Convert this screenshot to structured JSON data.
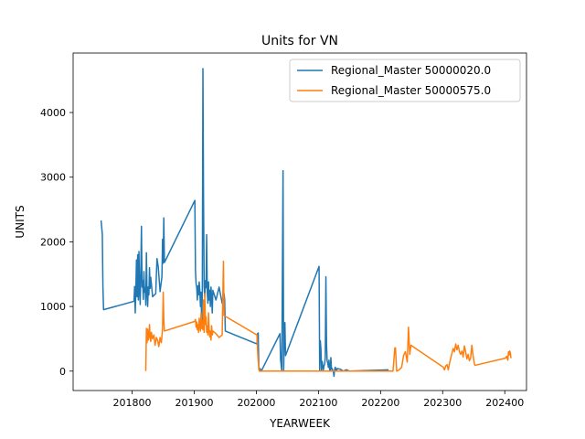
{
  "chart_data": {
    "type": "line",
    "title": "Units for VN",
    "xlabel": "YEARWEEK",
    "ylabel": "UNITS",
    "xlim": [
      201705,
      202435
    ],
    "ylim": [
      -300,
      4920
    ],
    "xticks": [
      201800,
      201900,
      202000,
      202100,
      202200,
      202300,
      202400
    ],
    "yticks": [
      0,
      1000,
      2000,
      3000,
      4000
    ],
    "grid": false,
    "legend_position": "top-right",
    "series": [
      {
        "name": "Regional_Master 50000020.0",
        "color": "#1f77b4",
        "points": [
          [
            201750,
            2330
          ],
          [
            201752,
            2120
          ],
          [
            201753,
            1300
          ],
          [
            201754,
            950
          ],
          [
            201803,
            1080
          ],
          [
            201804,
            1310
          ],
          [
            201805,
            900
          ],
          [
            201806,
            1270
          ],
          [
            201807,
            1720
          ],
          [
            201808,
            1150
          ],
          [
            201809,
            1800
          ],
          [
            201810,
            1100
          ],
          [
            201811,
            1850
          ],
          [
            201812,
            1250
          ],
          [
            201813,
            1030
          ],
          [
            201814,
            1560
          ],
          [
            201815,
            2240
          ],
          [
            201816,
            1300
          ],
          [
            201817,
            1400
          ],
          [
            201818,
            1110
          ],
          [
            201819,
            1540
          ],
          [
            201820,
            1220
          ],
          [
            201821,
            1290
          ],
          [
            201822,
            1020
          ],
          [
            201823,
            1830
          ],
          [
            201824,
            1250
          ],
          [
            201825,
            1000
          ],
          [
            201826,
            1300
          ],
          [
            201827,
            1180
          ],
          [
            201828,
            1600
          ],
          [
            201829,
            1280
          ],
          [
            201830,
            1450
          ],
          [
            201833,
            1150
          ],
          [
            201838,
            1200
          ],
          [
            201840,
            1740
          ],
          [
            201842,
            1620
          ],
          [
            201845,
            1230
          ],
          [
            201848,
            1460
          ],
          [
            201849,
            2040
          ],
          [
            201850,
            1670
          ],
          [
            201851,
            2370
          ],
          [
            201852,
            1680
          ],
          [
            201901,
            2640
          ],
          [
            201902,
            1560
          ],
          [
            201903,
            1350
          ],
          [
            201904,
            1300
          ],
          [
            201905,
            1100
          ],
          [
            201906,
            1320
          ],
          [
            201907,
            1180
          ],
          [
            201908,
            1380
          ],
          [
            201909,
            1250
          ],
          [
            201910,
            1000
          ],
          [
            201911,
            1220
          ],
          [
            201912,
            720
          ],
          [
            201913,
            1200
          ],
          [
            201914,
            4680
          ],
          [
            201915,
            2660
          ],
          [
            201916,
            1300
          ],
          [
            201917,
            1150
          ],
          [
            201918,
            1400
          ],
          [
            201919,
            1290
          ],
          [
            201920,
            2110
          ],
          [
            201921,
            1200
          ],
          [
            201922,
            1050
          ],
          [
            201923,
            1380
          ],
          [
            201924,
            1100
          ],
          [
            201925,
            1250
          ],
          [
            201926,
            1000
          ],
          [
            201927,
            1300
          ],
          [
            201928,
            1150
          ],
          [
            201929,
            900
          ],
          [
            201930,
            1250
          ],
          [
            201935,
            1100
          ],
          [
            201940,
            1300
          ],
          [
            201945,
            1050
          ],
          [
            201947,
            1080
          ],
          [
            201948,
            1200
          ],
          [
            201949,
            1100
          ],
          [
            201950,
            620
          ],
          [
            202001,
            420
          ],
          [
            202002,
            580
          ],
          [
            202003,
            590
          ],
          [
            202004,
            40
          ],
          [
            202005,
            0
          ],
          [
            202006,
            40
          ],
          [
            202008,
            0
          ],
          [
            202038,
            580
          ],
          [
            202039,
            180
          ],
          [
            202041,
            0
          ],
          [
            202043,
            3100
          ],
          [
            202044,
            0
          ],
          [
            202045,
            580
          ],
          [
            202046,
            750
          ],
          [
            202047,
            240
          ],
          [
            202101,
            1620
          ],
          [
            202102,
            0
          ],
          [
            202103,
            470
          ],
          [
            202104,
            340
          ],
          [
            202105,
            0
          ],
          [
            202106,
            150
          ],
          [
            202107,
            80
          ],
          [
            202108,
            20
          ],
          [
            202109,
            80
          ],
          [
            202110,
            110
          ],
          [
            202111,
            210
          ],
          [
            202112,
            1460
          ],
          [
            202113,
            420
          ],
          [
            202114,
            160
          ],
          [
            202115,
            120
          ],
          [
            202116,
            60
          ],
          [
            202117,
            170
          ],
          [
            202118,
            20
          ],
          [
            202119,
            0
          ],
          [
            202120,
            210
          ],
          [
            202121,
            30
          ],
          [
            202122,
            40
          ],
          [
            202123,
            10
          ],
          [
            202124,
            0
          ],
          [
            202125,
            -80
          ],
          [
            202126,
            20
          ],
          [
            202127,
            60
          ],
          [
            202128,
            30
          ],
          [
            202129,
            0
          ],
          [
            202130,
            40
          ],
          [
            202135,
            30
          ],
          [
            202140,
            0
          ],
          [
            202145,
            20
          ],
          [
            202150,
            0
          ],
          [
            202213,
            20
          ]
        ]
      },
      {
        "name": "Regional_Master 50000575.0",
        "color": "#ff7f0e",
        "points": [
          [
            201822,
            0
          ],
          [
            201823,
            660
          ],
          [
            201824,
            440
          ],
          [
            201825,
            650
          ],
          [
            201826,
            480
          ],
          [
            201827,
            540
          ],
          [
            201828,
            720
          ],
          [
            201829,
            520
          ],
          [
            201830,
            460
          ],
          [
            201831,
            600
          ],
          [
            201833,
            500
          ],
          [
            201835,
            560
          ],
          [
            201837,
            400
          ],
          [
            201839,
            520
          ],
          [
            201841,
            480
          ],
          [
            201843,
            380
          ],
          [
            201845,
            520
          ],
          [
            201847,
            440
          ],
          [
            201849,
            650
          ],
          [
            201850,
            1220
          ],
          [
            201851,
            800
          ],
          [
            201852,
            620
          ],
          [
            201901,
            770
          ],
          [
            201902,
            800
          ],
          [
            201903,
            680
          ],
          [
            201904,
            760
          ],
          [
            201905,
            640
          ],
          [
            201906,
            720
          ],
          [
            201907,
            600
          ],
          [
            201908,
            820
          ],
          [
            201909,
            700
          ],
          [
            201910,
            620
          ],
          [
            201911,
            900
          ],
          [
            201912,
            660
          ],
          [
            201913,
            780
          ],
          [
            201914,
            640
          ],
          [
            201915,
            1100
          ],
          [
            201916,
            600
          ],
          [
            201917,
            1200
          ],
          [
            201918,
            720
          ],
          [
            201919,
            840
          ],
          [
            201920,
            600
          ],
          [
            201921,
            700
          ],
          [
            201922,
            560
          ],
          [
            201923,
            900
          ],
          [
            201924,
            650
          ],
          [
            201925,
            530
          ],
          [
            201926,
            620
          ],
          [
            201927,
            480
          ],
          [
            201928,
            700
          ],
          [
            201929,
            560
          ],
          [
            201930,
            620
          ],
          [
            201935,
            580
          ],
          [
            201940,
            520
          ],
          [
            201945,
            560
          ],
          [
            201947,
            1700
          ],
          [
            201948,
            860
          ],
          [
            202001,
            560
          ],
          [
            202002,
            320
          ],
          [
            202003,
            150
          ],
          [
            202005,
            0
          ],
          [
            202210,
            0
          ],
          [
            202215,
            0
          ],
          [
            202220,
            0
          ],
          [
            202223,
            360
          ],
          [
            202224,
            360
          ],
          [
            202226,
            0
          ],
          [
            202230,
            20
          ],
          [
            202234,
            60
          ],
          [
            202237,
            240
          ],
          [
            202240,
            300
          ],
          [
            202243,
            140
          ],
          [
            202245,
            680
          ],
          [
            202247,
            260
          ],
          [
            202249,
            400
          ],
          [
            202301,
            60
          ],
          [
            202303,
            20
          ],
          [
            202305,
            80
          ],
          [
            202307,
            100
          ],
          [
            202309,
            20
          ],
          [
            202311,
            120
          ],
          [
            202313,
            200
          ],
          [
            202315,
            280
          ],
          [
            202317,
            350
          ],
          [
            202319,
            300
          ],
          [
            202321,
            420
          ],
          [
            202323,
            330
          ],
          [
            202325,
            400
          ],
          [
            202327,
            300
          ],
          [
            202329,
            260
          ],
          [
            202331,
            310
          ],
          [
            202333,
            220
          ],
          [
            202335,
            390
          ],
          [
            202337,
            300
          ],
          [
            202339,
            190
          ],
          [
            202341,
            260
          ],
          [
            202343,
            160
          ],
          [
            202345,
            200
          ],
          [
            202347,
            400
          ],
          [
            202349,
            240
          ],
          [
            202351,
            120
          ],
          [
            202352,
            90
          ],
          [
            202401,
            200
          ],
          [
            202403,
            230
          ],
          [
            202405,
            170
          ],
          [
            202406,
            300
          ],
          [
            202407,
            250
          ],
          [
            202408,
            310
          ],
          [
            202409,
            280
          ],
          [
            202410,
            200
          ]
        ]
      }
    ]
  }
}
